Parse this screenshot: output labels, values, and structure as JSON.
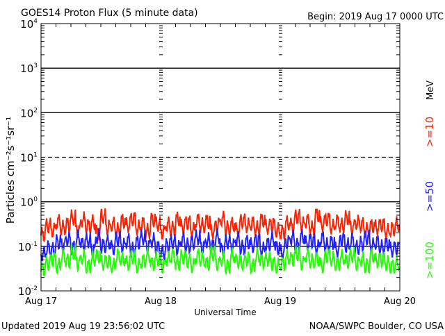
{
  "chart_data": {
    "type": "line",
    "title": "GOES14 Proton Flux (5 minute data)",
    "begin_label": "Begin: 2019 Aug 17 0000 UTC",
    "xlabel": "Universal Time",
    "ylabel": "Particles cm⁻²s⁻¹sr⁻¹",
    "y_scale": "log",
    "ylim": [
      0.01,
      10000
    ],
    "y_ticks": [
      {
        "value": 10000,
        "base": "10",
        "exp": "4"
      },
      {
        "value": 1000,
        "base": "10",
        "exp": "3"
      },
      {
        "value": 100,
        "base": "10",
        "exp": "2"
      },
      {
        "value": 10,
        "base": "10",
        "exp": "1"
      },
      {
        "value": 1,
        "base": "10",
        "exp": "0"
      },
      {
        "value": 0.1,
        "base": "10",
        "exp": "-1"
      },
      {
        "value": 0.01,
        "base": "10",
        "exp": "-2"
      }
    ],
    "x_ticks": [
      "Aug 17",
      "Aug 18",
      "Aug 19",
      "Aug 20"
    ],
    "x_unit": "hours since 2019 Aug 17 0000 UTC",
    "xlim": [
      0,
      72
    ],
    "reference_lines": [
      {
        "value": 1000,
        "style": "solid"
      },
      {
        "value": 100,
        "style": "solid"
      },
      {
        "value": 10,
        "style": "dashed"
      },
      {
        "value": 1,
        "style": "solid"
      },
      {
        "value": 0.1,
        "style": "solid"
      }
    ],
    "legend_unit": "MeV",
    "legend_position": "right",
    "grid": false,
    "series": [
      {
        "name": ">=10",
        "color": "#ff2000",
        "values": [
          0.18,
          0.28,
          0.22,
          0.35,
          0.25,
          0.3,
          0.42,
          0.22,
          0.38,
          0.28,
          0.33,
          0.2,
          0.45,
          0.26,
          0.3,
          0.22,
          0.36,
          0.28,
          0.4,
          0.25,
          0.32,
          0.21,
          0.38,
          0.3,
          0.2,
          0.3,
          0.24,
          0.4,
          0.26,
          0.33,
          0.22,
          0.38,
          0.28,
          0.35,
          0.2,
          0.3,
          0.4,
          0.25,
          0.3,
          0.22,
          0.36,
          0.28,
          0.32,
          0.24,
          0.38,
          0.26,
          0.3,
          0.22,
          0.2,
          0.32,
          0.28,
          0.45,
          0.3,
          0.36,
          0.24,
          0.5,
          0.3,
          0.4,
          0.26,
          0.35,
          0.28,
          0.42,
          0.25,
          0.33,
          0.3,
          0.22,
          0.28,
          0.25,
          0.3,
          0.21,
          0.24,
          0.3
        ]
      },
      {
        "name": ">=50",
        "color": "#2020ff",
        "values": [
          0.065,
          0.09,
          0.08,
          0.12,
          0.1,
          0.14,
          0.09,
          0.15,
          0.11,
          0.13,
          0.08,
          0.16,
          0.1,
          0.12,
          0.09,
          0.14,
          0.1,
          0.13,
          0.08,
          0.12,
          0.15,
          0.1,
          0.13,
          0.09,
          0.07,
          0.1,
          0.12,
          0.09,
          0.14,
          0.1,
          0.12,
          0.15,
          0.09,
          0.13,
          0.1,
          0.16,
          0.08,
          0.12,
          0.1,
          0.14,
          0.09,
          0.12,
          0.1,
          0.13,
          0.08,
          0.11,
          0.14,
          0.09,
          0.07,
          0.12,
          0.15,
          0.1,
          0.16,
          0.11,
          0.13,
          0.09,
          0.15,
          0.1,
          0.12,
          0.08,
          0.14,
          0.1,
          0.13,
          0.09,
          0.11,
          0.15,
          0.1,
          0.12,
          0.09,
          0.11,
          0.08,
          0.09
        ]
      },
      {
        "name": ">=100",
        "color": "#20ff00",
        "values": [
          0.03,
          0.04,
          0.05,
          0.035,
          0.06,
          0.045,
          0.07,
          0.04,
          0.055,
          0.035,
          0.05,
          0.06,
          0.04,
          0.045,
          0.035,
          0.06,
          0.05,
          0.04,
          0.055,
          0.035,
          0.045,
          0.06,
          0.04,
          0.05,
          0.035,
          0.05,
          0.06,
          0.04,
          0.055,
          0.045,
          0.035,
          0.06,
          0.05,
          0.04,
          0.065,
          0.04,
          0.05,
          0.035,
          0.06,
          0.045,
          0.04,
          0.05,
          0.035,
          0.06,
          0.045,
          0.05,
          0.04,
          0.035,
          0.04,
          0.055,
          0.05,
          0.065,
          0.04,
          0.06,
          0.045,
          0.05,
          0.035,
          0.06,
          0.05,
          0.04,
          0.055,
          0.045,
          0.06,
          0.04,
          0.05,
          0.035,
          0.06,
          0.045,
          0.05,
          0.04,
          0.035,
          0.04
        ]
      }
    ]
  },
  "footer": {
    "updated": "Updated 2019 Aug 19 23:56:02 UTC",
    "credit": "NOAA/SWPC Boulder, CO USA"
  }
}
